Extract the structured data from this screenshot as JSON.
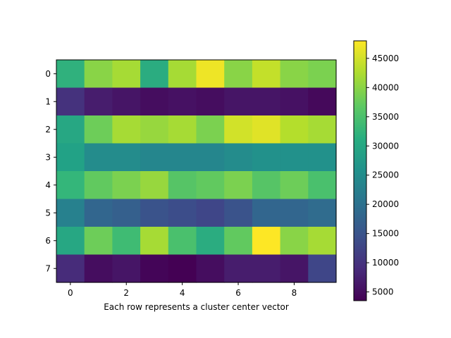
{
  "chart_data": {
    "type": "heatmap",
    "title": "",
    "xlabel": "Each row represents a cluster center vector",
    "ylabel": "",
    "x_ticks": [
      0,
      2,
      4,
      6,
      8
    ],
    "y_ticks": [
      0,
      1,
      2,
      3,
      4,
      5,
      6,
      7
    ],
    "rows": 8,
    "cols": 10,
    "values": [
      [
        32000,
        40000,
        42000,
        31000,
        42000,
        47000,
        40000,
        44000,
        40000,
        39000
      ],
      [
        10000,
        7000,
        6000,
        5000,
        5500,
        5000,
        6000,
        6000,
        5500,
        4500
      ],
      [
        30000,
        38000,
        42000,
        41000,
        42000,
        39000,
        45000,
        46000,
        43000,
        42000
      ],
      [
        29000,
        25000,
        25000,
        24000,
        24000,
        24000,
        25000,
        26000,
        26000,
        26000
      ],
      [
        33000,
        37000,
        39000,
        41000,
        36000,
        37000,
        39000,
        36000,
        38000,
        35000
      ],
      [
        23000,
        18000,
        17000,
        15000,
        14000,
        13000,
        15000,
        18000,
        18000,
        19000
      ],
      [
        30000,
        38000,
        34000,
        42000,
        35000,
        31000,
        37000,
        48000,
        40000,
        42000
      ],
      [
        9000,
        5000,
        6000,
        4000,
        3500,
        5000,
        7000,
        7000,
        6000,
        13000
      ]
    ],
    "colorbar": {
      "colormap": "viridis",
      "min": 3500,
      "max": 48000,
      "ticks": [
        5000,
        10000,
        15000,
        20000,
        25000,
        30000,
        35000,
        40000,
        45000
      ]
    },
    "grid": false,
    "legend": "none"
  }
}
